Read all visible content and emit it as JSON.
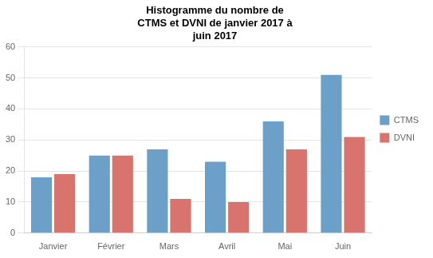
{
  "chart_data": {
    "type": "bar",
    "title": "Histogramme du nombre de\nCTMS et DVNI de janvier 2017 à\njuin 2017",
    "categories": [
      "Janvier",
      "Février",
      "Mars",
      "Avril",
      "Mai",
      "Juin"
    ],
    "series": [
      {
        "name": "CTMS",
        "color": "#6CA0C8",
        "values": [
          18,
          25,
          27,
          23,
          36,
          51
        ]
      },
      {
        "name": "DVNI",
        "color": "#D9736E",
        "values": [
          19,
          25,
          11,
          10,
          27,
          31
        ]
      }
    ],
    "ylim": [
      0,
      60
    ],
    "yticks": [
      0,
      10,
      20,
      30,
      40,
      50,
      60
    ],
    "grid": true,
    "legend": "right"
  }
}
